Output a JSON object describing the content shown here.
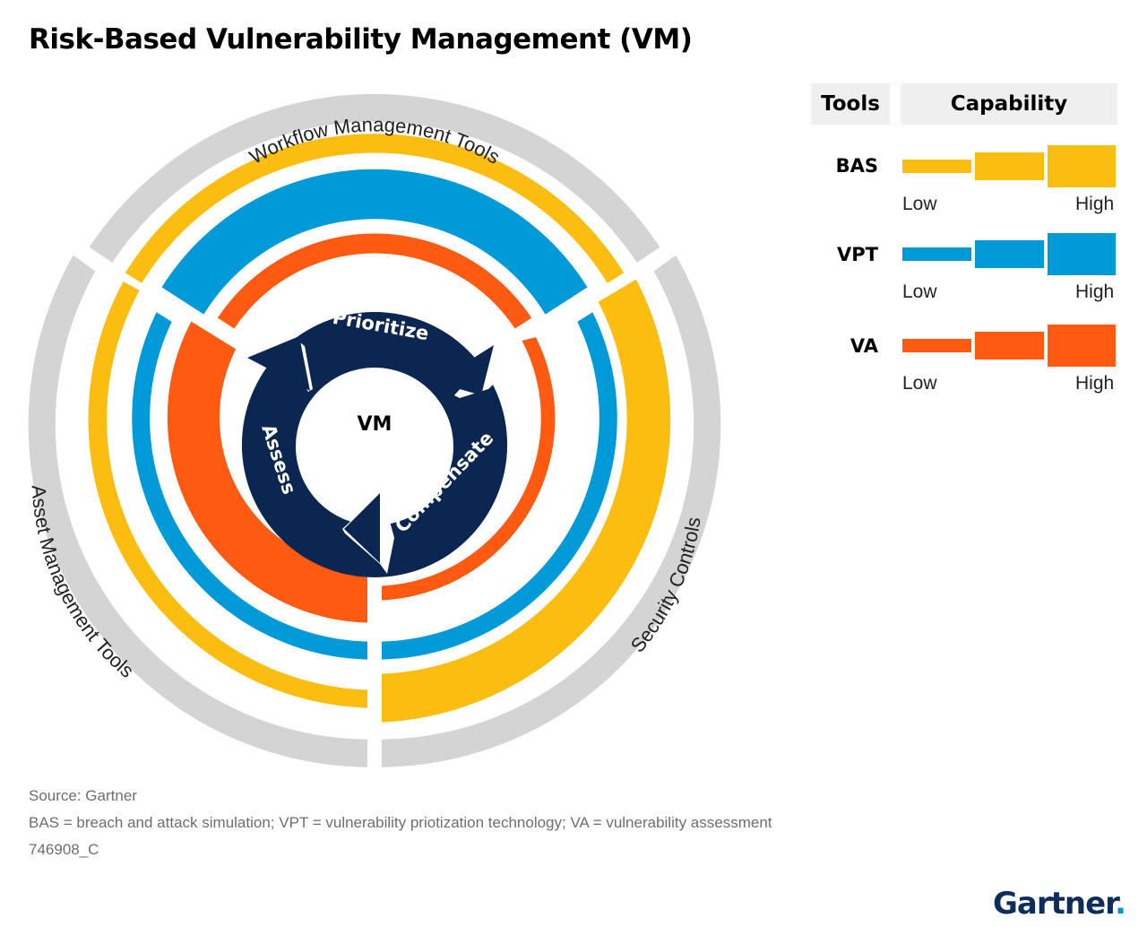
{
  "title": "Risk-Based Vulnerability Management (VM)",
  "diagram": {
    "center_label": "VM",
    "cycle": [
      "Prioritize",
      "Compensate",
      "Assess"
    ],
    "outer_labels": {
      "top": "Workflow Management Tools",
      "right": "Security Controls",
      "left": "Asset Management Tools"
    }
  },
  "legend": {
    "tools_header": "Tools",
    "capability_header": "Capability",
    "low_label": "Low",
    "high_label": "High",
    "items": [
      {
        "name": "BAS",
        "color": "#fbbd0f"
      },
      {
        "name": "VPT",
        "color": "#009ad8"
      },
      {
        "name": "VA",
        "color": "#fe5a12"
      }
    ]
  },
  "colors": {
    "gray_ring": "#d4d4d4",
    "navy": "#0b2751",
    "bas": "#fbbd0f",
    "vpt": "#009ad8",
    "va": "#fe5a12"
  },
  "footer": {
    "source": "Source: Gartner",
    "note": "BAS = breach and attack simulation; VPT = vulnerability priotization technology; VA = vulnerability assessment",
    "id": "746908_C"
  },
  "brand": {
    "name": "Gartner",
    "dot": "."
  }
}
